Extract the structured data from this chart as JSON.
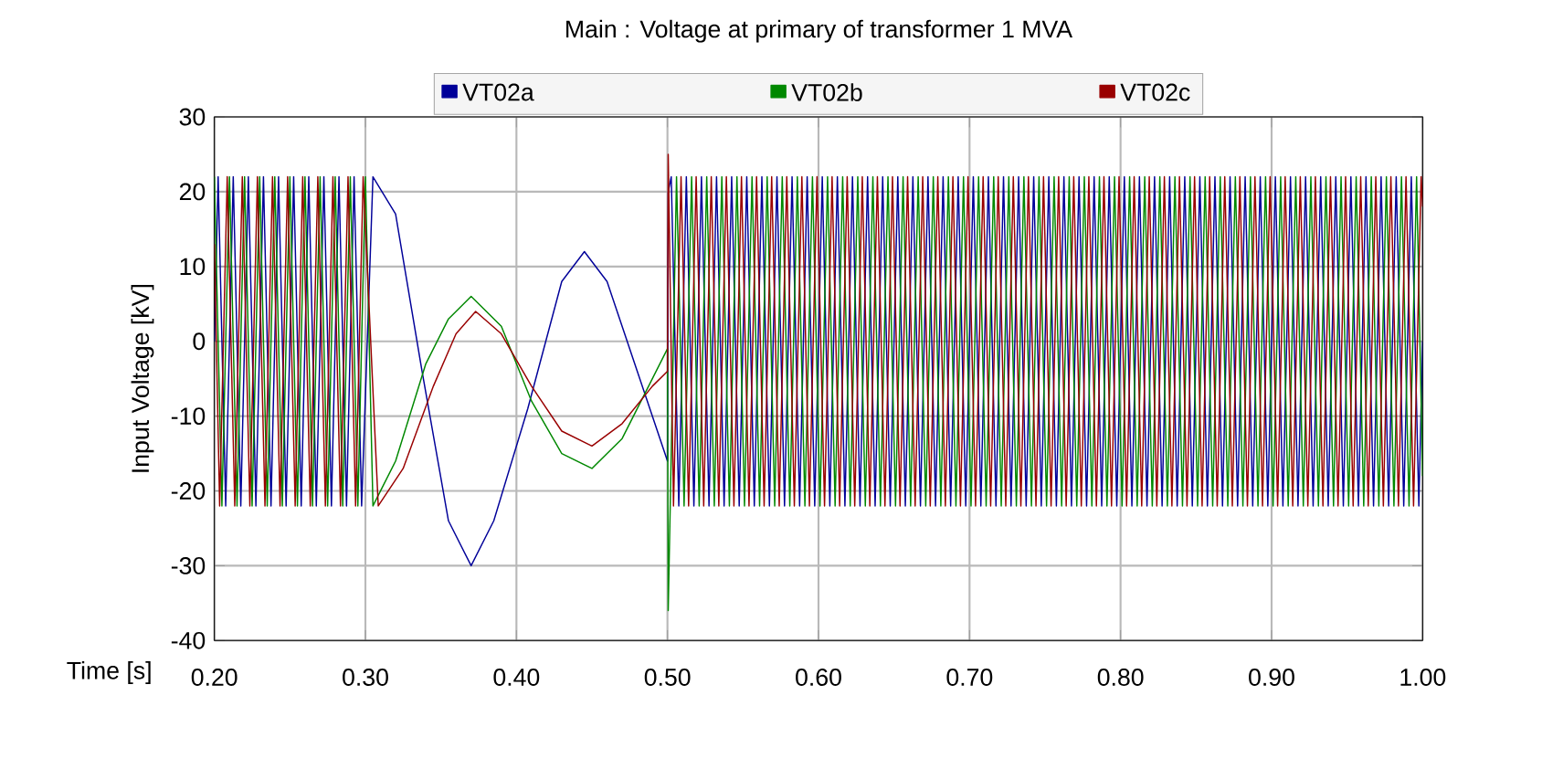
{
  "chart_data": {
    "type": "line",
    "title": "Main : Voltage at primary of transformer 1 MVA",
    "xlabel": "Time [s]",
    "ylabel": "Input Voltage [kV]",
    "xlim": [
      0.2,
      1.0
    ],
    "ylim": [
      -40,
      30
    ],
    "xticks": [
      {
        "value": 0.2,
        "label": "0.20"
      },
      {
        "value": 0.3,
        "label": "0.30"
      },
      {
        "value": 0.4,
        "label": "0.40"
      },
      {
        "value": 0.5,
        "label": "0.50"
      },
      {
        "value": 0.6,
        "label": "0.60"
      },
      {
        "value": 0.7,
        "label": "0.70"
      },
      {
        "value": 0.8,
        "label": "0.80"
      },
      {
        "value": 0.9,
        "label": "0.90"
      },
      {
        "value": 1.0,
        "label": "1.00"
      }
    ],
    "yticks": [
      -40,
      -30,
      -20,
      -10,
      0,
      10,
      20,
      30
    ],
    "grid": true,
    "legend": "top",
    "line_style": "solid",
    "series": [
      {
        "name": "VT02a",
        "color": "#000099",
        "x": [
          0.2,
          0.2025,
          0.2075,
          0.2125,
          0.2175,
          0.2225,
          0.2275,
          0.2325,
          0.2375,
          0.2425,
          0.2475,
          0.2525,
          0.2575,
          0.2625,
          0.2675,
          0.2725,
          0.2775,
          0.2825,
          0.2875,
          0.2925,
          0.2975,
          0.305,
          0.32,
          0.3375,
          0.355,
          0.37,
          0.385,
          0.4075,
          0.43,
          0.445,
          0.46,
          0.48,
          0.5,
          0.5005,
          0.5025,
          0.5075,
          0.5125,
          0.5175,
          0.5225,
          0.5275,
          0.5325,
          0.5375,
          0.5425,
          0.5475,
          0.5525,
          0.5575,
          0.5625,
          0.5675,
          0.5725,
          0.5775,
          0.5825,
          0.5875,
          0.5925,
          0.5975,
          0.6025,
          0.6075,
          0.6125,
          0.6175,
          0.6225,
          0.6275,
          0.6325,
          0.6375,
          0.6425,
          0.6475,
          0.6525,
          0.6575,
          0.6625,
          0.6675,
          0.6725,
          0.6775,
          0.6825,
          0.6875,
          0.6925,
          0.6975,
          0.7025,
          0.7075,
          0.7125,
          0.7175,
          0.7225,
          0.7275,
          0.7325,
          0.7375,
          0.7425,
          0.7475,
          0.7525,
          0.7575,
          0.7625,
          0.7675,
          0.7725,
          0.7775,
          0.7825,
          0.7875,
          0.7925,
          0.7975,
          0.8025,
          0.8075,
          0.8125,
          0.8175,
          0.8225,
          0.8275,
          0.8325,
          0.8375,
          0.8425,
          0.8475,
          0.8525,
          0.8575,
          0.8625,
          0.8675,
          0.8725,
          0.8775,
          0.8825,
          0.8875,
          0.8925,
          0.8975,
          0.9025,
          0.9075,
          0.9125,
          0.9175,
          0.9225,
          0.9275,
          0.9325,
          0.9375,
          0.9425,
          0.9475,
          0.9525,
          0.9575,
          0.9625,
          0.9675,
          0.9725,
          0.9775,
          0.9825,
          0.9875,
          0.9925,
          0.9975,
          1.0
        ],
        "values": [
          0,
          22,
          -22,
          22,
          -22,
          22,
          -22,
          22,
          -22,
          22,
          -22,
          22,
          -22,
          22,
          -22,
          22,
          -22,
          22,
          -22,
          22,
          -22,
          22,
          17,
          -4,
          -24,
          -30,
          -24,
          -9,
          8,
          12,
          8,
          -4,
          -16,
          20,
          22,
          -22,
          22,
          -22,
          22,
          -22,
          22,
          -22,
          22,
          -22,
          22,
          -22,
          22,
          -22,
          22,
          -22,
          22,
          -22,
          22,
          -22,
          22,
          -22,
          22,
          -22,
          22,
          -22,
          22,
          -22,
          22,
          -22,
          22,
          -22,
          22,
          -22,
          22,
          -22,
          22,
          -22,
          22,
          -22,
          22,
          -22,
          22,
          -22,
          22,
          -22,
          22,
          -22,
          22,
          -22,
          22,
          -22,
          22,
          -22,
          22,
          -22,
          22,
          -22,
          22,
          -22,
          22,
          -22,
          22,
          -22,
          22,
          -22,
          22,
          -22,
          22,
          -22,
          22,
          -22,
          22,
          -22,
          22,
          -22,
          22,
          -22,
          22,
          -22,
          22,
          -22,
          22,
          -22,
          22,
          -22,
          22,
          -22,
          22,
          -22,
          22,
          -22,
          22,
          -22,
          22,
          -22,
          22,
          -22,
          22,
          -22,
          0
        ]
      },
      {
        "name": "VT02b",
        "color": "#008800",
        "x": [
          0.2,
          0.205,
          0.21,
          0.215,
          0.22,
          0.225,
          0.23,
          0.235,
          0.24,
          0.245,
          0.25,
          0.255,
          0.26,
          0.265,
          0.27,
          0.275,
          0.28,
          0.285,
          0.29,
          0.295,
          0.3,
          0.305,
          0.32,
          0.34,
          0.355,
          0.37,
          0.39,
          0.41,
          0.43,
          0.45,
          0.47,
          0.49,
          0.5,
          0.5005,
          0.506,
          0.511,
          0.516,
          0.521,
          0.526,
          0.531,
          0.536,
          0.541,
          0.546,
          0.551,
          0.556,
          0.561,
          0.566,
          0.571,
          0.576,
          0.581,
          0.586,
          0.591,
          0.596,
          0.601,
          0.606,
          0.611,
          0.616,
          0.621,
          0.626,
          0.631,
          0.636,
          0.641,
          0.646,
          0.651,
          0.656,
          0.661,
          0.666,
          0.671,
          0.676,
          0.681,
          0.686,
          0.691,
          0.696,
          0.701,
          0.706,
          0.711,
          0.716,
          0.721,
          0.726,
          0.731,
          0.736,
          0.741,
          0.746,
          0.751,
          0.756,
          0.761,
          0.766,
          0.771,
          0.776,
          0.781,
          0.786,
          0.791,
          0.796,
          0.801,
          0.806,
          0.811,
          0.816,
          0.821,
          0.826,
          0.831,
          0.836,
          0.841,
          0.846,
          0.851,
          0.856,
          0.861,
          0.866,
          0.871,
          0.876,
          0.881,
          0.886,
          0.891,
          0.896,
          0.901,
          0.906,
          0.911,
          0.916,
          0.921,
          0.926,
          0.931,
          0.936,
          0.941,
          0.946,
          0.951,
          0.956,
          0.961,
          0.966,
          0.971,
          0.976,
          0.981,
          0.986,
          0.991,
          0.996,
          1.0
        ],
        "values": [
          22,
          -22,
          22,
          -22,
          22,
          -22,
          22,
          -22,
          22,
          -22,
          22,
          -22,
          22,
          -22,
          22,
          -22,
          22,
          -22,
          22,
          -22,
          22,
          -22,
          -16,
          -3,
          3,
          6,
          2,
          -8,
          -15,
          -17,
          -13,
          -5,
          -1,
          -36,
          22,
          -22,
          22,
          -22,
          22,
          -22,
          22,
          -22,
          22,
          -22,
          22,
          -22,
          22,
          -22,
          22,
          -22,
          22,
          -22,
          22,
          -22,
          22,
          -22,
          22,
          -22,
          22,
          -22,
          22,
          -22,
          22,
          -22,
          22,
          -22,
          22,
          -22,
          22,
          -22,
          22,
          -22,
          22,
          -22,
          22,
          -22,
          22,
          -22,
          22,
          -22,
          22,
          -22,
          22,
          -22,
          22,
          -22,
          22,
          -22,
          22,
          -22,
          22,
          -22,
          22,
          -22,
          22,
          -22,
          22,
          -22,
          22,
          -22,
          22,
          -22,
          22,
          -22,
          22,
          -22,
          22,
          -22,
          22,
          -22,
          22,
          -22,
          22,
          -22,
          22,
          -22,
          22,
          -22,
          22,
          -22,
          22,
          -22,
          22,
          -22,
          22,
          -22,
          22,
          -22,
          22,
          -22,
          22,
          -22,
          22,
          -18
        ]
      },
      {
        "name": "VT02c",
        "color": "#990000",
        "x": [
          0.2,
          0.2035,
          0.2085,
          0.2135,
          0.2185,
          0.2235,
          0.2285,
          0.2335,
          0.2385,
          0.2435,
          0.2485,
          0.2535,
          0.2585,
          0.2635,
          0.2685,
          0.2735,
          0.2785,
          0.2835,
          0.2885,
          0.2935,
          0.2985,
          0.3085,
          0.325,
          0.345,
          0.36,
          0.373,
          0.39,
          0.41,
          0.43,
          0.45,
          0.47,
          0.49,
          0.5,
          0.5005,
          0.504,
          0.509,
          0.514,
          0.519,
          0.524,
          0.529,
          0.534,
          0.539,
          0.544,
          0.549,
          0.554,
          0.559,
          0.564,
          0.569,
          0.574,
          0.579,
          0.584,
          0.589,
          0.594,
          0.599,
          0.604,
          0.609,
          0.614,
          0.619,
          0.624,
          0.629,
          0.634,
          0.639,
          0.644,
          0.649,
          0.654,
          0.659,
          0.664,
          0.669,
          0.674,
          0.679,
          0.684,
          0.689,
          0.694,
          0.699,
          0.704,
          0.709,
          0.714,
          0.719,
          0.724,
          0.729,
          0.734,
          0.739,
          0.744,
          0.749,
          0.754,
          0.759,
          0.764,
          0.769,
          0.774,
          0.779,
          0.784,
          0.789,
          0.794,
          0.799,
          0.804,
          0.809,
          0.814,
          0.819,
          0.824,
          0.829,
          0.834,
          0.839,
          0.844,
          0.849,
          0.854,
          0.859,
          0.864,
          0.869,
          0.874,
          0.879,
          0.884,
          0.889,
          0.894,
          0.899,
          0.904,
          0.909,
          0.914,
          0.919,
          0.924,
          0.929,
          0.934,
          0.939,
          0.944,
          0.949,
          0.954,
          0.959,
          0.964,
          0.969,
          0.974,
          0.979,
          0.984,
          0.989,
          0.994,
          0.999,
          1.0
        ],
        "values": [
          13,
          -22,
          22,
          -22,
          22,
          -22,
          22,
          -22,
          22,
          -22,
          22,
          -22,
          22,
          -22,
          22,
          -22,
          22,
          -22,
          22,
          -22,
          22,
          -22,
          -17,
          -6,
          1,
          4,
          1,
          -6,
          -12,
          -14,
          -11,
          -6,
          -4,
          25,
          -22,
          22,
          -22,
          22,
          -22,
          22,
          -22,
          22,
          -22,
          22,
          -22,
          22,
          -22,
          22,
          -22,
          22,
          -22,
          22,
          -22,
          22,
          -22,
          22,
          -22,
          22,
          -22,
          22,
          -22,
          22,
          -22,
          22,
          -22,
          22,
          -22,
          22,
          -22,
          22,
          -22,
          22,
          -22,
          22,
          -22,
          22,
          -22,
          22,
          -22,
          22,
          -22,
          22,
          -22,
          22,
          -22,
          22,
          -22,
          22,
          -22,
          22,
          -22,
          22,
          -22,
          22,
          -22,
          22,
          -22,
          22,
          -22,
          22,
          -22,
          22,
          -22,
          22,
          -22,
          22,
          -22,
          22,
          -22,
          22,
          -22,
          22,
          -22,
          22,
          -22,
          22,
          -22,
          22,
          -22,
          22,
          -22,
          22,
          -22,
          22,
          -22,
          22,
          -22,
          22,
          -22,
          22,
          -22,
          22,
          -22,
          22,
          18
        ]
      }
    ]
  }
}
